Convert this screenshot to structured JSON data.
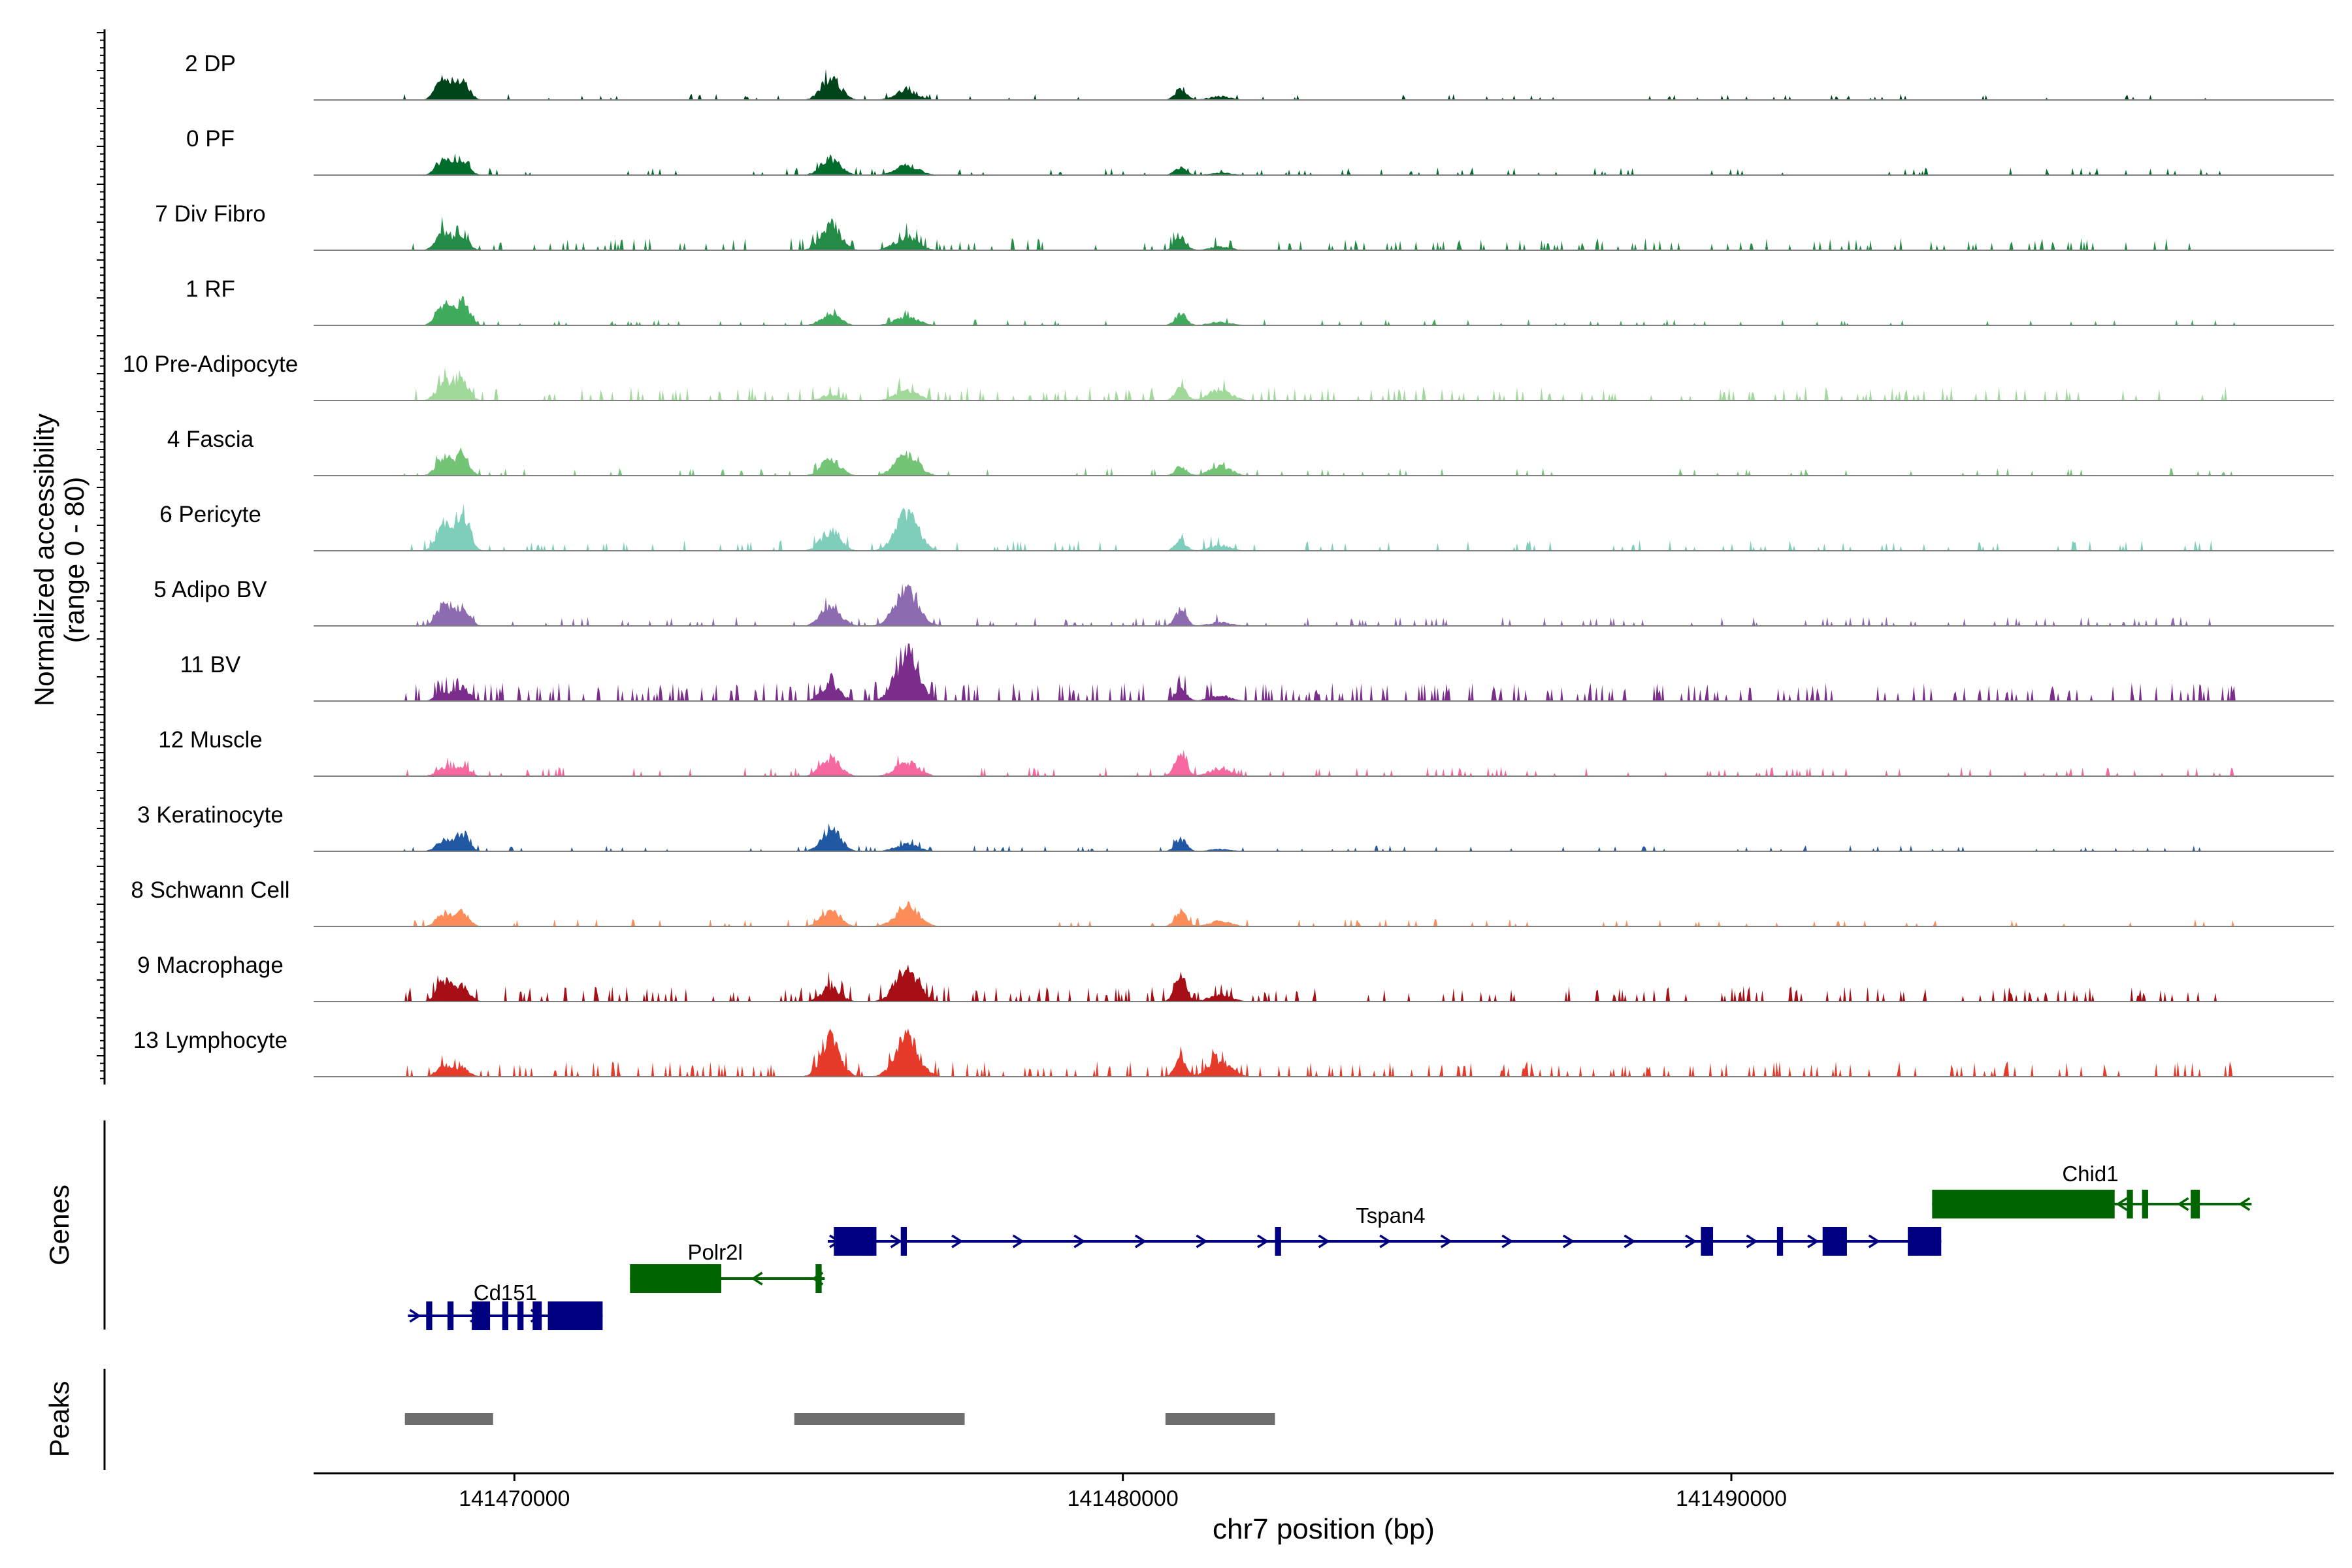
{
  "chart_data": {
    "type": "area",
    "title": "",
    "ylabel_line1": "Normalized accessibility",
    "ylabel_line2": "(range 0 - 80)",
    "y_range": [
      0,
      80
    ],
    "xlabel": "chr7 position (bp)",
    "chromosome": "chr7",
    "x_range": [
      141466700,
      141499900
    ],
    "x_ticks": [
      141470000,
      141480000,
      141490000
    ],
    "x_tick_labels": [
      "141470000",
      "141480000",
      "141490000"
    ],
    "genes_label": "Genes",
    "peaks_label": "Peaks",
    "peak_regions": [
      {
        "start": 141468200,
        "end": 141469650
      },
      {
        "start": 141474600,
        "end": 141477400
      },
      {
        "start": 141480700,
        "end": 141482500
      }
    ],
    "peak_centers": [
      141468850,
      141469150,
      141475200,
      141476450,
      141480950,
      141481600
    ],
    "tracks": [
      {
        "name": "2 DP",
        "color": "#00441b",
        "heights": [
          0.55,
          0.4,
          0.5,
          0.2,
          0.25,
          0.08
        ],
        "noise": 0.04
      },
      {
        "name": "0 PF",
        "color": "#006d2c",
        "heights": [
          0.35,
          0.35,
          0.38,
          0.22,
          0.18,
          0.06
        ],
        "noise": 0.05
      },
      {
        "name": "7 Div Fibro",
        "color": "#238b45",
        "heights": [
          0.4,
          0.3,
          0.6,
          0.3,
          0.3,
          0.08
        ],
        "noise": 0.08
      },
      {
        "name": "1 RF",
        "color": "#41ab5d",
        "heights": [
          0.45,
          0.5,
          0.25,
          0.2,
          0.25,
          0.08
        ],
        "noise": 0.04
      },
      {
        "name": "10 Pre-Adipocyte",
        "color": "#a1d99b",
        "heights": [
          0.45,
          0.4,
          0.12,
          0.22,
          0.28,
          0.25
        ],
        "noise": 0.09
      },
      {
        "name": "4 Fascia",
        "color": "#74c476",
        "heights": [
          0.45,
          0.45,
          0.35,
          0.45,
          0.2,
          0.2
        ],
        "noise": 0.05
      },
      {
        "name": "6 Pericyte",
        "color": "#7fcdbb",
        "heights": [
          0.55,
          0.85,
          0.45,
          0.8,
          0.22,
          0.12
        ],
        "noise": 0.07
      },
      {
        "name": "5 Adipo BV",
        "color": "#8c6bb1",
        "heights": [
          0.45,
          0.4,
          0.45,
          0.85,
          0.35,
          0.08
        ],
        "noise": 0.06
      },
      {
        "name": "11 BV",
        "color": "#7a2d8a",
        "heights": [
          0.2,
          0.3,
          0.35,
          0.95,
          0.28,
          0.12
        ],
        "noise": 0.12
      },
      {
        "name": "12 Muscle",
        "color": "#f768a1",
        "heights": [
          0.2,
          0.2,
          0.4,
          0.3,
          0.55,
          0.18
        ],
        "noise": 0.06
      },
      {
        "name": "3 Keratinocyte",
        "color": "#2158a4",
        "heights": [
          0.25,
          0.4,
          0.5,
          0.15,
          0.28,
          0.05
        ],
        "noise": 0.04
      },
      {
        "name": "8 Schwann Cell",
        "color": "#fc8d59",
        "heights": [
          0.3,
          0.3,
          0.35,
          0.45,
          0.35,
          0.12
        ],
        "noise": 0.05
      },
      {
        "name": "9 Macrophage",
        "color": "#a50f15",
        "heights": [
          0.45,
          0.35,
          0.3,
          0.65,
          0.55,
          0.15
        ],
        "noise": 0.1
      },
      {
        "name": "13 Lymphocyte",
        "color": "#e63a2a",
        "heights": [
          0.25,
          0.2,
          0.8,
          0.85,
          0.4,
          0.35
        ],
        "noise": 0.1
      }
    ],
    "genes": [
      {
        "name": "Cd151",
        "strand": "+",
        "color": "#000080",
        "start": 141468250,
        "end": 141471450,
        "row": 2,
        "exons": [
          [
            141468550,
            141468650
          ],
          [
            141468900,
            141469000
          ],
          [
            141469300,
            141469600
          ],
          [
            141469800,
            141469900
          ],
          [
            141470050,
            141470150
          ],
          [
            141470300,
            141470450
          ],
          [
            141470550,
            141471450
          ]
        ]
      },
      {
        "name": "Polr2l",
        "strand": "-",
        "color": "#006400",
        "start": 141471900,
        "end": 141475100,
        "row": 1,
        "exons": [
          [
            141471900,
            141473400
          ],
          [
            141474950,
            141475050
          ]
        ]
      },
      {
        "name": "Tspan4",
        "strand": "+",
        "color": "#000080",
        "start": 141475150,
        "end": 141493450,
        "row": 0,
        "exons": [
          [
            141475250,
            141475950
          ],
          [
            141476350,
            141476450
          ],
          [
            141482500,
            141482600
          ],
          [
            141489500,
            141489700
          ],
          [
            141490750,
            141490850
          ],
          [
            141491500,
            141491900
          ],
          [
            141492900,
            141493450
          ]
        ]
      },
      {
        "name": "Chid1",
        "strand": "-",
        "color": "#006400",
        "start": 141493300,
        "end": 141498550,
        "row": -1,
        "exons": [
          [
            141493300,
            141496300
          ],
          [
            141496500,
            141496600
          ],
          [
            141496750,
            141496850
          ],
          [
            141497550,
            141497700
          ]
        ]
      }
    ]
  }
}
